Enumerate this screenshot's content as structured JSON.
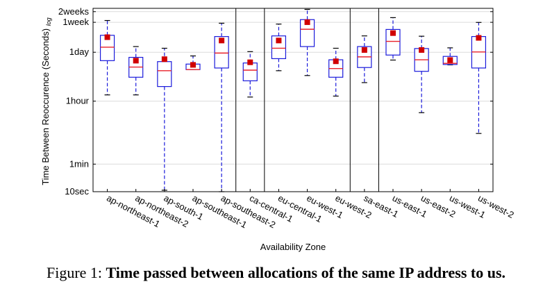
{
  "caption": {
    "prefix": "Figure 1:",
    "text": "Time passed between allocations of the same IP address to us."
  },
  "chart_data": {
    "type": "box",
    "xlabel": "Availability Zone",
    "ylabel": "Time Between Reoccurence (Seconds)",
    "ylabel_subscript": "log",
    "yscale": "log",
    "ylim_seconds": [
      10,
      1500000
    ],
    "yticks": [
      {
        "label": "10sec",
        "value": 10
      },
      {
        "label": "1min",
        "value": 60
      },
      {
        "label": "1hour",
        "value": 3600
      },
      {
        "label": "1day",
        "value": 86400
      },
      {
        "label": "1week",
        "value": 604800
      },
      {
        "label": "2weeks",
        "value": 1209600
      }
    ],
    "grid": true,
    "region_dividers_after": [
      "ap-southeast-2",
      "ca-central-1",
      "eu-west-2",
      "sa-east-1"
    ],
    "colors": {
      "box": "#1a1adb",
      "median": "#e8202a",
      "mean": "#d00000",
      "grid": "#dcdcdc"
    },
    "categories": [
      "ap-northeast-1",
      "ap-northeast-2",
      "ap-south-1",
      "ap-southeast-1",
      "ap-southeast-2",
      "ca-central-1",
      "eu-central-1",
      "eu-west-1",
      "eu-west-2",
      "sa-east-1",
      "us-east-1",
      "us-east-2",
      "us-west-1",
      "us-west-2"
    ],
    "boxes": [
      {
        "whisker_low": 5400,
        "q1": 50000,
        "median": 120000,
        "q3": 260000,
        "whisker_high": 680000,
        "mean": 230000
      },
      {
        "whisker_low": 5400,
        "q1": 17000,
        "median": 33000,
        "q3": 62000,
        "whisker_high": 125000,
        "mean": 50000
      },
      {
        "whisker_low": 11,
        "q1": 9300,
        "median": 26000,
        "q3": 47000,
        "whisker_high": 112000,
        "mean": 55000
      },
      {
        "whisker_low": 28000,
        "q1": 28000,
        "median": 28000,
        "q3": 40000,
        "whisker_high": 68000,
        "mean": 38000
      },
      {
        "whisker_low": 10,
        "q1": 31000,
        "median": 82000,
        "q3": 240000,
        "whisker_high": 570000,
        "mean": 185000
      },
      {
        "whisker_low": 4700,
        "q1": 13500,
        "median": 27000,
        "q3": 43000,
        "whisker_high": 90000,
        "mean": 45000
      },
      {
        "whisker_low": 26000,
        "q1": 57000,
        "median": 112000,
        "q3": 250000,
        "whisker_high": 540000,
        "mean": 185000
      },
      {
        "whisker_low": 19000,
        "q1": 125000,
        "median": 385000,
        "q3": 720000,
        "whisker_high": 1400000,
        "mean": 610000
      },
      {
        "whisker_low": 5000,
        "q1": 17000,
        "median": 30000,
        "q3": 53000,
        "whisker_high": 112000,
        "mean": 48000
      },
      {
        "whisker_low": 12000,
        "q1": 32000,
        "median": 64000,
        "q3": 125000,
        "whisker_high": 250000,
        "mean": 100000
      },
      {
        "whisker_low": 52000,
        "q1": 72000,
        "median": 175000,
        "q3": 380000,
        "whisker_high": 820000,
        "mean": 300000
      },
      {
        "whisker_low": 1700,
        "q1": 25000,
        "median": 53000,
        "q3": 110000,
        "whisker_high": 245000,
        "mean": 100000
      },
      {
        "whisker_low": 38000,
        "q1": 39000,
        "median": 42000,
        "q3": 66000,
        "whisker_high": 115000,
        "mean": 52000
      },
      {
        "whisker_low": 440,
        "q1": 31000,
        "median": 88000,
        "q3": 240000,
        "whisker_high": 600000,
        "mean": 220000
      }
    ]
  }
}
